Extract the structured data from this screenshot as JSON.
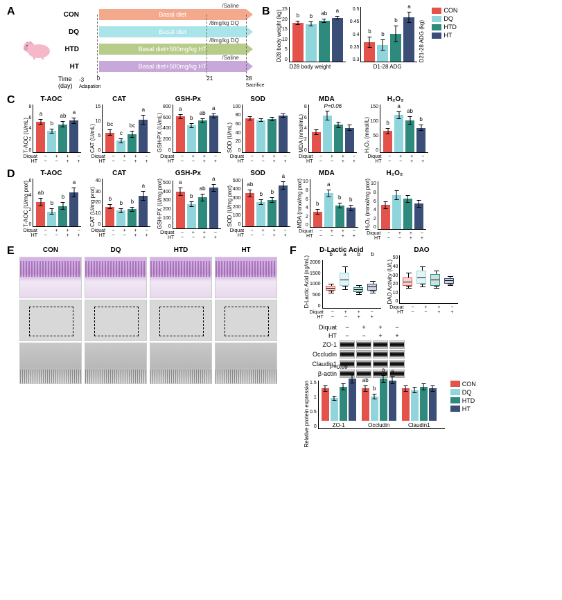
{
  "colors": {
    "CON": "#e4534b",
    "DQ": "#8fd5db",
    "HTD": "#2f8a7e",
    "HT": "#3b4e78",
    "CON_arrow": "#f5a98c",
    "DQ_arrow": "#a8e4e8",
    "HTD_arrow": "#b8cc8a",
    "HT_arrow": "#c8a8d8"
  },
  "groups": [
    "CON",
    "DQ",
    "HTD",
    "HT"
  ],
  "panelA": {
    "rows": [
      {
        "label": "CON",
        "bar_text": "Basal diet",
        "note": "Saline",
        "note2": "/Saline",
        "color": "#f5a98c"
      },
      {
        "label": "DQ",
        "bar_text": "Basal diet",
        "note": "8mg/kg DQ",
        "note2": "/8mg/kg DQ",
        "color": "#a8e4e8"
      },
      {
        "label": "HTD",
        "bar_text": "Basal diet+500mg/kg HT",
        "note": "8mg/kg DQ",
        "note2": "/8mg/kg DQ",
        "color": "#b8cc8a"
      },
      {
        "label": "HT",
        "bar_text": "Basal diet+500mg/kg HT",
        "note": "Saline",
        "note2": "/Saline",
        "color": "#c8a8d8"
      }
    ],
    "time_label": "Time\n(day)",
    "ticks": [
      "-3",
      "0",
      "21",
      "28"
    ],
    "tick_labels": {
      "adapt": "Adapation",
      "sac": "Sacrifice"
    }
  },
  "panelB": {
    "legend": [
      "CON",
      "DQ",
      "HTD",
      "HT"
    ],
    "charts": [
      {
        "title": "",
        "ylabel": "D28 body weight (kg)",
        "ylim": [
          0,
          25
        ],
        "yticks": [
          0,
          5,
          10,
          15,
          20,
          25
        ],
        "xlabel": "D28 body weight",
        "values": [
          17.5,
          17,
          18.5,
          19.8
        ],
        "err": [
          1,
          1,
          1,
          0.8
        ],
        "sig": [
          "b",
          "b",
          "ab",
          "a"
        ]
      },
      {
        "title": "",
        "ylabel": "D21-28 ADG (kg)",
        "ylabel_right": true,
        "ylim": [
          0.3,
          0.5
        ],
        "yticks": [
          0.3,
          0.35,
          0.4,
          0.45,
          0.5
        ],
        "xlabel": "D1-28 ADG",
        "values": [
          0.37,
          0.36,
          0.4,
          0.46
        ],
        "err": [
          0.02,
          0.02,
          0.03,
          0.02
        ],
        "sig": [
          "b",
          "b",
          "b",
          "a"
        ]
      }
    ]
  },
  "panelC": {
    "charts": [
      {
        "title": "T-AOC",
        "ylabel": "T-AOC (U/mL)",
        "ylim": [
          0,
          8
        ],
        "yticks": [
          0,
          2,
          4,
          6,
          8
        ],
        "values": [
          5,
          3.5,
          4.6,
          5.2
        ],
        "err": [
          0.5,
          0.4,
          0.5,
          0.5
        ],
        "sig": [
          "a",
          "b",
          "ab",
          "a"
        ]
      },
      {
        "title": "CAT",
        "ylabel": "CAT (U/mL)",
        "ylim": [
          0,
          15
        ],
        "yticks": [
          0,
          5,
          10,
          15
        ],
        "values": [
          6,
          3.5,
          5.5,
          10
        ],
        "err": [
          1,
          0.8,
          1,
          1.5
        ],
        "sig": [
          "bc",
          "c",
          "bc",
          "a"
        ],
        "extra_sig": "ab",
        "extra_idx": 2
      },
      {
        "title": "GSH-Px",
        "ylabel": "GSH-PX (U/mL)",
        "ylim": [
          0,
          800
        ],
        "yticks": [
          0,
          200,
          400,
          600,
          800
        ],
        "values": [
          590,
          440,
          520,
          600
        ],
        "err": [
          40,
          40,
          40,
          40
        ],
        "sig": [
          "a",
          "b",
          "ab",
          "a"
        ]
      },
      {
        "title": "SOD",
        "ylabel": "SOD (U/mL)",
        "ylim": [
          0,
          100
        ],
        "yticks": [
          0,
          20,
          40,
          60,
          80,
          100
        ],
        "values": [
          70,
          66,
          68,
          75
        ],
        "err": [
          4,
          4,
          4,
          4
        ],
        "sig": [
          "",
          "",
          "",
          ""
        ]
      },
      {
        "title": "MDA",
        "ylabel": "MDA (nmol/mL)",
        "ylim": [
          0,
          8
        ],
        "yticks": [
          0,
          2,
          4,
          6,
          8
        ],
        "values": [
          3.3,
          6,
          4.5,
          4
        ],
        "err": [
          0.5,
          0.8,
          0.5,
          0.5
        ],
        "sig": [
          "",
          "",
          "",
          ""
        ],
        "pnote": "P=0.06"
      },
      {
        "title": "H₂O₂",
        "ylabel": "H₂O₂ (mmol/L)",
        "ylim": [
          0,
          150
        ],
        "yticks": [
          0,
          50,
          100,
          150
        ],
        "values": [
          65,
          115,
          98,
          75
        ],
        "err": [
          10,
          12,
          12,
          10
        ],
        "sig": [
          "b",
          "a",
          "ab",
          "b"
        ]
      }
    ],
    "xax": {
      "diquat": [
        "−",
        "+",
        "+",
        "−"
      ],
      "ht": [
        "−",
        "−",
        "+",
        "+"
      ]
    }
  },
  "panelD": {
    "charts": [
      {
        "title": "T-AOC",
        "ylabel": "T-AOC (U/mg prot)",
        "ylim": [
          0,
          6
        ],
        "yticks": [
          0,
          2,
          4,
          6
        ],
        "values": [
          3,
          1.8,
          2.5,
          4.2
        ],
        "err": [
          0.5,
          0.4,
          0.5,
          0.6
        ],
        "sig": [
          "ab",
          "b",
          "b",
          "a"
        ]
      },
      {
        "title": "CAT",
        "ylabel": "CAT (U/mg prot)",
        "ylim": [
          0,
          40
        ],
        "yticks": [
          0,
          10,
          20,
          30,
          40
        ],
        "values": [
          16,
          13,
          14,
          25
        ],
        "err": [
          2,
          2,
          2,
          4
        ],
        "sig": [
          "b",
          "b",
          "b",
          "a"
        ]
      },
      {
        "title": "GSH-Px",
        "ylabel": "GSH-PX (U/mg prot)",
        "ylim": [
          0,
          500
        ],
        "yticks": [
          0,
          100,
          200,
          300,
          400,
          500
        ],
        "values": [
          380,
          250,
          320,
          420
        ],
        "err": [
          40,
          30,
          40,
          40
        ],
        "sig": [
          "a",
          "b",
          "ab",
          "a"
        ]
      },
      {
        "title": "SOD",
        "ylabel": "SOD (U/mg prot)",
        "ylim": [
          0,
          500
        ],
        "yticks": [
          0,
          100,
          200,
          300,
          400,
          500
        ],
        "values": [
          340,
          250,
          270,
          420
        ],
        "err": [
          40,
          30,
          30,
          40
        ],
        "sig": [
          "ab",
          "b",
          "b",
          "a"
        ]
      },
      {
        "title": "MDA",
        "ylabel": "MDA (nmol/mg prot)",
        "ylim": [
          0,
          10
        ],
        "yticks": [
          0,
          2,
          4,
          6,
          8,
          10
        ],
        "values": [
          3.2,
          7,
          4.5,
          4
        ],
        "err": [
          0.6,
          0.8,
          0.6,
          0.6
        ],
        "sig": [
          "b",
          "a",
          "b",
          "b"
        ]
      },
      {
        "title": "H₂O₂",
        "ylabel": "H₂O₂ (mmol/mg prot)",
        "ylim": [
          0,
          10
        ],
        "yticks": [
          0,
          2,
          4,
          6,
          8,
          10
        ],
        "values": [
          5,
          7,
          6.3,
          5.3
        ],
        "err": [
          0.8,
          1,
          0.8,
          0.8
        ],
        "sig": [
          "",
          "",
          "",
          ""
        ]
      }
    ]
  },
  "panelE": {
    "labels": [
      "CON",
      "DQ",
      "HTD",
      "HT"
    ]
  },
  "panelF": {
    "boxplots": [
      {
        "title": "D-Lactic Acid",
        "ylabel": "D-Lactic Acid (ng/mL)",
        "ylim": [
          0,
          2000
        ],
        "yticks": [
          0,
          500,
          1000,
          1500,
          2000
        ],
        "boxes": [
          {
            "q1": 700,
            "med": 800,
            "q3": 900,
            "lo": 600,
            "hi": 1000,
            "sig": "b"
          },
          {
            "q1": 900,
            "med": 1150,
            "q3": 1450,
            "lo": 750,
            "hi": 1700,
            "sig": "a"
          },
          {
            "q1": 650,
            "med": 750,
            "q3": 850,
            "lo": 550,
            "hi": 950,
            "sig": "b"
          },
          {
            "q1": 700,
            "med": 850,
            "q3": 1000,
            "lo": 600,
            "hi": 1100,
            "sig": "b"
          }
        ]
      },
      {
        "title": "DAO",
        "ylabel": "DAO Activity (U/L)",
        "ylim": [
          0,
          50
        ],
        "yticks": [
          0,
          10,
          20,
          30,
          40,
          50
        ],
        "boxes": [
          {
            "q1": 18,
            "med": 22,
            "q3": 27,
            "lo": 15,
            "hi": 32,
            "sig": ""
          },
          {
            "q1": 20,
            "med": 26,
            "q3": 34,
            "lo": 17,
            "hi": 38,
            "sig": ""
          },
          {
            "q1": 18,
            "med": 24,
            "q3": 30,
            "lo": 15,
            "hi": 34,
            "sig": ""
          },
          {
            "q1": 20,
            "med": 23,
            "q3": 26,
            "lo": 18,
            "hi": 28,
            "sig": ""
          }
        ]
      }
    ],
    "blot": {
      "header_diquat": [
        "−",
        "+",
        "+",
        "−"
      ],
      "header_ht": [
        "−",
        "−",
        "+",
        "+"
      ],
      "proteins": [
        "ZO-1",
        "Occludin",
        "Claudin1",
        "β-actin"
      ]
    },
    "barcharts": [
      {
        "protein": "ZO-1",
        "values": [
          1.0,
          0.7,
          1.05,
          1.3
        ],
        "err": [
          0.1,
          0.08,
          0.1,
          0.15
        ],
        "sig": [
          "",
          "",
          "",
          ""
        ],
        "pnote": "P=0.09"
      },
      {
        "protein": "Occludin",
        "values": [
          1.0,
          0.75,
          1.3,
          1.25
        ],
        "err": [
          0.1,
          0.08,
          0.12,
          0.12
        ],
        "sig": [
          "ab",
          "b",
          "a",
          "a"
        ]
      },
      {
        "protein": "Claudin1",
        "values": [
          1.0,
          0.95,
          1.05,
          1.0
        ],
        "err": [
          0.1,
          0.1,
          0.1,
          0.1
        ],
        "sig": [
          "",
          "",
          "",
          ""
        ]
      }
    ],
    "bar_ylabel": "Relative protein expression",
    "bar_ylim": [
      0,
      1.5
    ],
    "bar_yticks": [
      0,
      0.5,
      1.0,
      1.5
    ]
  }
}
